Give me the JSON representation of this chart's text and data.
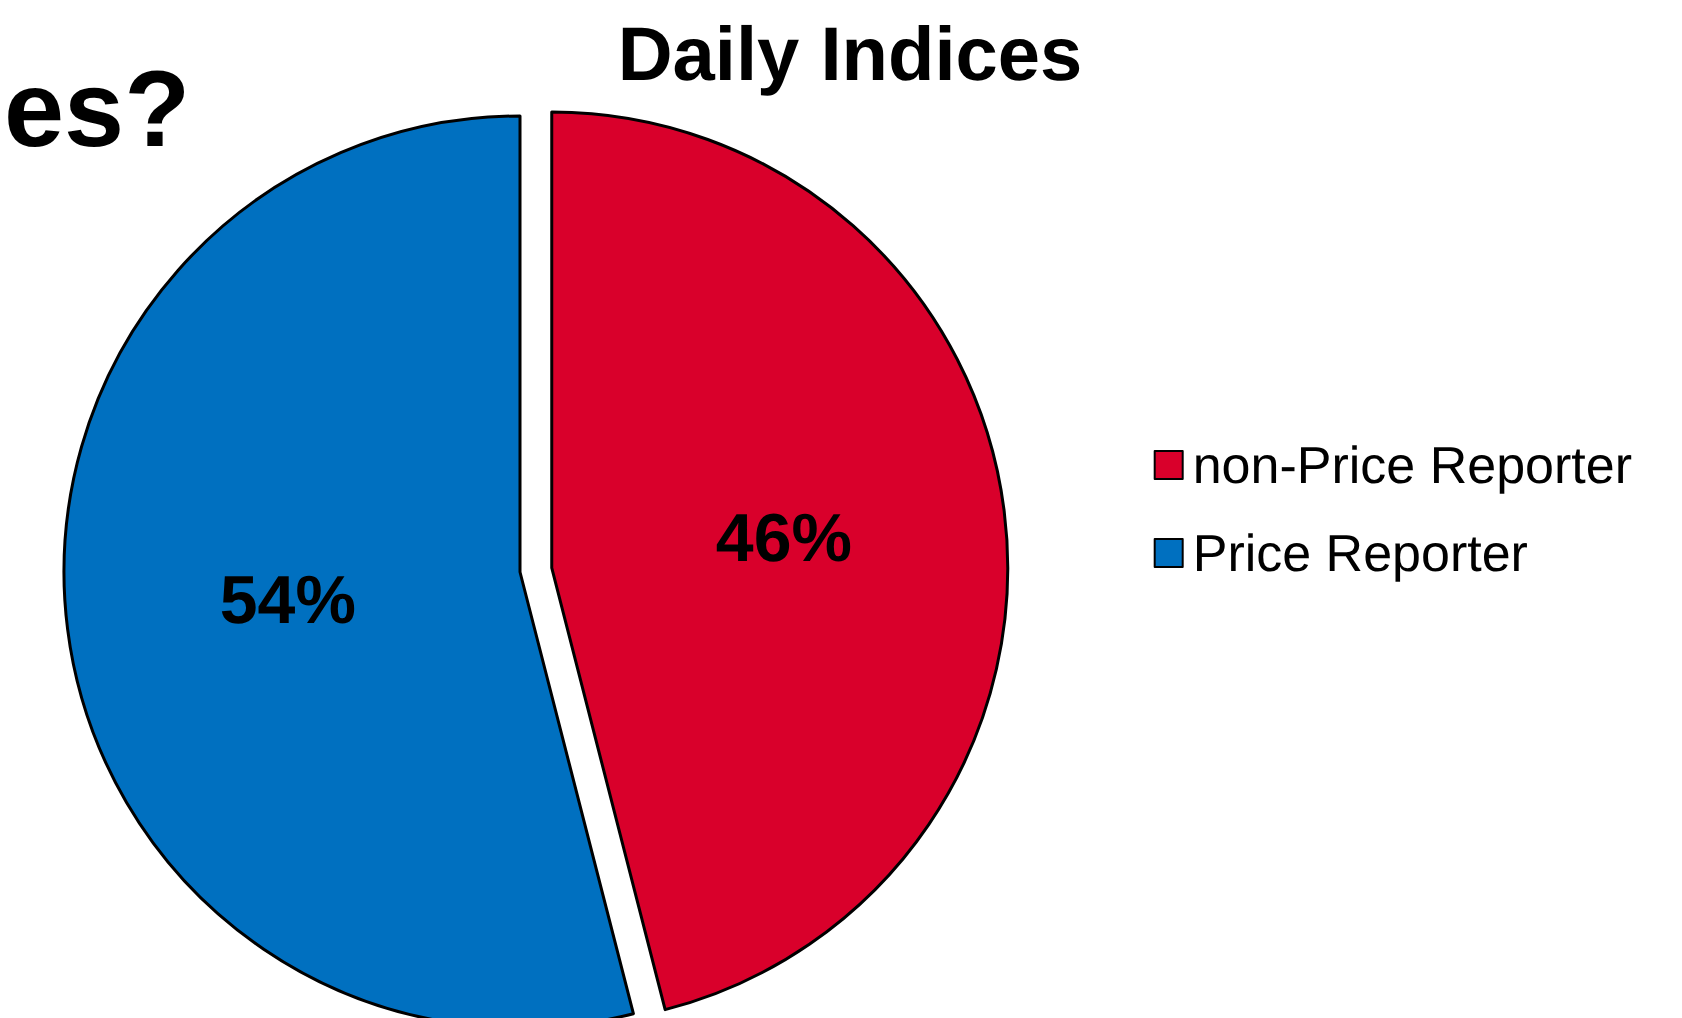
{
  "chart_data": {
    "type": "pie",
    "title": "Daily Indices",
    "annotations": [
      "es?"
    ],
    "categories": [
      "non-Price Reporter",
      "Price Reporter"
    ],
    "values": [
      46,
      54
    ],
    "colors": [
      "#d9002b",
      "#0070c0"
    ],
    "value_labels": [
      "46%",
      "54%"
    ],
    "legend": "right"
  }
}
